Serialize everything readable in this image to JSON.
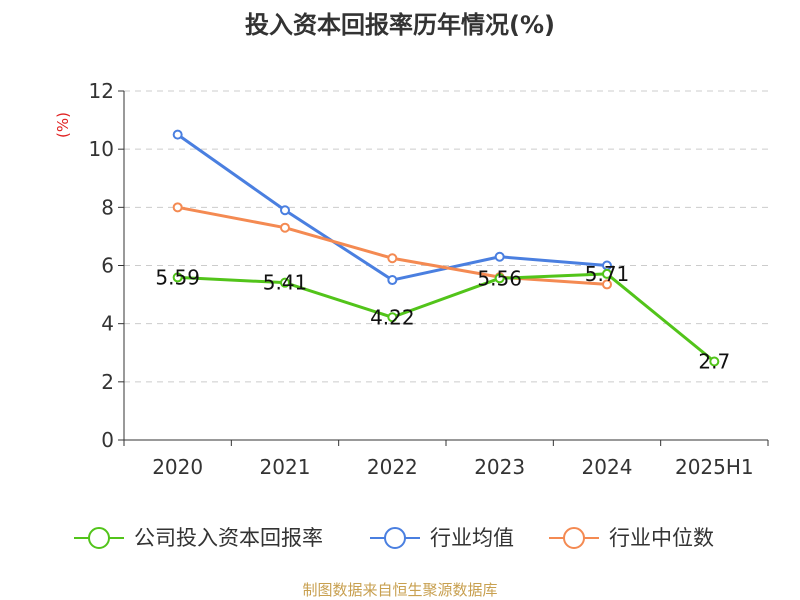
{
  "chart_data": {
    "type": "line",
    "title": "投入资本回报率历年情况(%)",
    "ylabel": "(%)",
    "xlabel": "",
    "categories": [
      "2020",
      "2021",
      "2022",
      "2023",
      "2024",
      "2025H1"
    ],
    "ylim": [
      0,
      12
    ],
    "yticks": [
      "0",
      "2",
      "4",
      "6",
      "8",
      "10",
      "12"
    ],
    "grid": true,
    "legend_position": "bottom",
    "series": [
      {
        "name": "公司投入资本回报率",
        "color": "#52c41a",
        "values": [
          5.59,
          5.41,
          4.22,
          5.56,
          5.71,
          2.7
        ],
        "labels": [
          "5.59",
          "5.41",
          "4.22",
          "5.56",
          "5.71",
          "2.7"
        ]
      },
      {
        "name": "行业均值",
        "color": "#4a7fe0",
        "values": [
          10.5,
          7.9,
          5.5,
          6.3,
          6.0,
          null
        ]
      },
      {
        "name": "行业中位数",
        "color": "#f48a52",
        "values": [
          8.0,
          7.3,
          6.25,
          5.6,
          5.35,
          null
        ]
      }
    ],
    "source": "制图数据来自恒生聚源数据库"
  }
}
